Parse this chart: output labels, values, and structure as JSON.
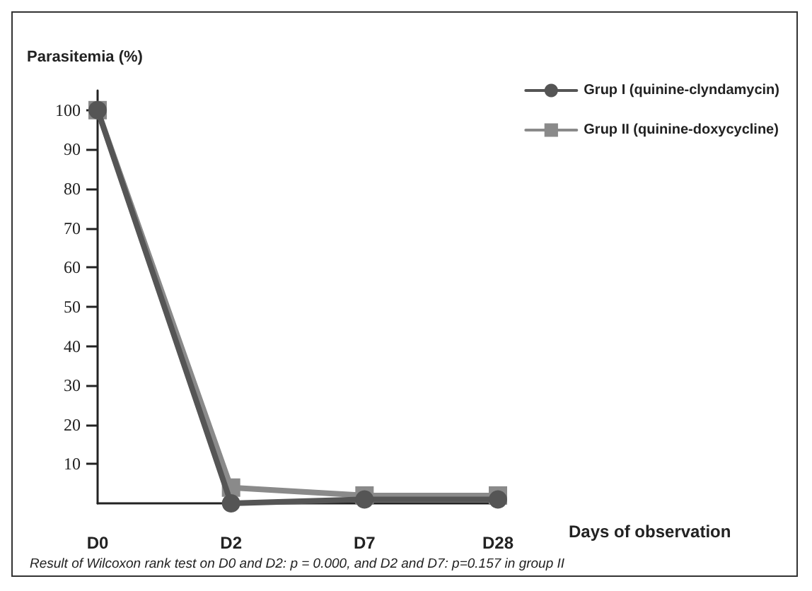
{
  "chart_data": {
    "type": "line",
    "ylabel": "Parasitemia (%)",
    "xlabel": "Days of observation",
    "categories": [
      "D0",
      "D2",
      "D7",
      "D28"
    ],
    "series": [
      {
        "name": "Grup I (quinine-clyndamycin)",
        "color": "#555555",
        "marker": "circle",
        "values": [
          100,
          0,
          1,
          1
        ]
      },
      {
        "name": "Grup II (quinine-doxycycline)",
        "color": "#8a8a8a",
        "marker": "square",
        "values": [
          100,
          4,
          2,
          2
        ]
      }
    ],
    "ylim": [
      0,
      105
    ],
    "yticks": [
      10,
      20,
      30,
      40,
      50,
      60,
      70,
      80,
      90,
      100
    ],
    "grid": false,
    "legend": "top right",
    "annotations": [
      "Result of Wilcoxon rank test on D0 and D2: p = 0.000, and D2 and D7: p=0.157 in group II"
    ]
  }
}
